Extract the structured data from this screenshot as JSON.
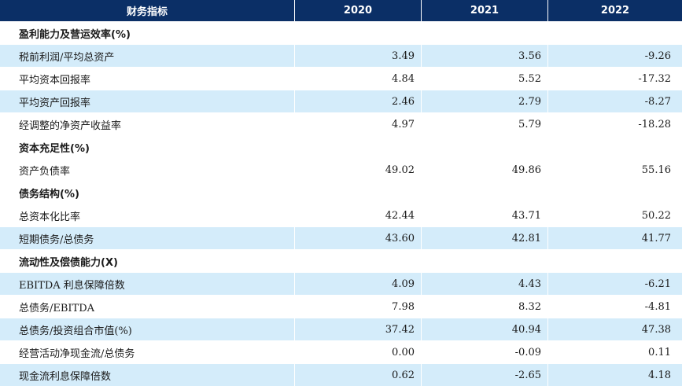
{
  "header": {
    "col_indicator": "财务指标",
    "col_2020": "2020",
    "col_2021": "2021",
    "col_2022": "2022"
  },
  "section_profitability": "盈利能力及营运效率(%)",
  "section_capital": "资本充足性(%)",
  "section_debt": "债务结构(%)",
  "section_liquidity": "流动性及偿债能力(X)",
  "rows": {
    "pretax_roa": {
      "label": "税前利润/平均总资产",
      "v2020": "3.49",
      "v2021": "3.56",
      "v2022": "-9.26"
    },
    "roc": {
      "label": "平均资本回报率",
      "v2020": "4.84",
      "v2021": "5.52",
      "v2022": "-17.32"
    },
    "roa": {
      "label": "平均资产回报率",
      "v2020": "2.46",
      "v2021": "2.79",
      "v2022": "-8.27"
    },
    "adj_roe": {
      "label": "经调整的净资产收益率",
      "v2020": "4.97",
      "v2021": "5.79",
      "v2022": "-18.28"
    },
    "debt_ratio": {
      "label": "资产负债率",
      "v2020": "49.02",
      "v2021": "49.86",
      "v2022": "55.16"
    },
    "capitalization": {
      "label": "总资本化比率",
      "v2020": "42.44",
      "v2021": "43.71",
      "v2022": "50.22"
    },
    "short_term_debt": {
      "label": "短期债务/总债务",
      "v2020": "43.60",
      "v2021": "42.81",
      "v2022": "41.77"
    },
    "ebitda_coverage": {
      "label": "EBITDA 利息保障倍数",
      "v2020": "4.09",
      "v2021": "4.43",
      "v2022": "-6.21"
    },
    "debt_ebitda": {
      "label": "总债务/EBITDA",
      "v2020": "7.98",
      "v2021": "8.32",
      "v2022": "-4.81"
    },
    "debt_portfolio": {
      "label": "总债务/投资组合市值(%)",
      "v2020": "37.42",
      "v2021": "40.94",
      "v2022": "47.38"
    },
    "ocf_debt": {
      "label": "经营活动净现金流/总债务",
      "v2020": "0.00",
      "v2021": "-0.09",
      "v2022": "0.11"
    },
    "cash_coverage": {
      "label": "现金流利息保障倍数",
      "v2020": "0.62",
      "v2021": "-2.65",
      "v2022": "4.18"
    }
  }
}
